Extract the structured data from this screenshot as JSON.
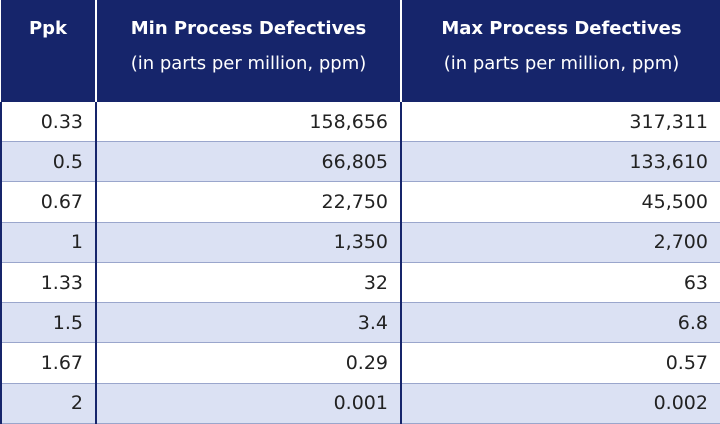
{
  "table": {
    "header": [
      {
        "title": "Ppk"
      },
      {
        "title": "Min Process Defectives",
        "subtitle": "(in parts per million, ppm)"
      },
      {
        "title": "Max Process Defectives",
        "subtitle": "(in parts per million, ppm)"
      }
    ],
    "rows": [
      [
        "0.33",
        "158,656",
        "317,311"
      ],
      [
        "0.5",
        "66,805",
        "133,610"
      ],
      [
        "0.67",
        "22,750",
        "45,500"
      ],
      [
        "1",
        "1,350",
        "2,700"
      ],
      [
        "1.33",
        "32",
        "63"
      ],
      [
        "1.5",
        "3.4",
        "6.8"
      ],
      [
        "1.67",
        "0.29",
        "0.57"
      ],
      [
        "2",
        "0.001",
        "0.002"
      ]
    ]
  }
}
